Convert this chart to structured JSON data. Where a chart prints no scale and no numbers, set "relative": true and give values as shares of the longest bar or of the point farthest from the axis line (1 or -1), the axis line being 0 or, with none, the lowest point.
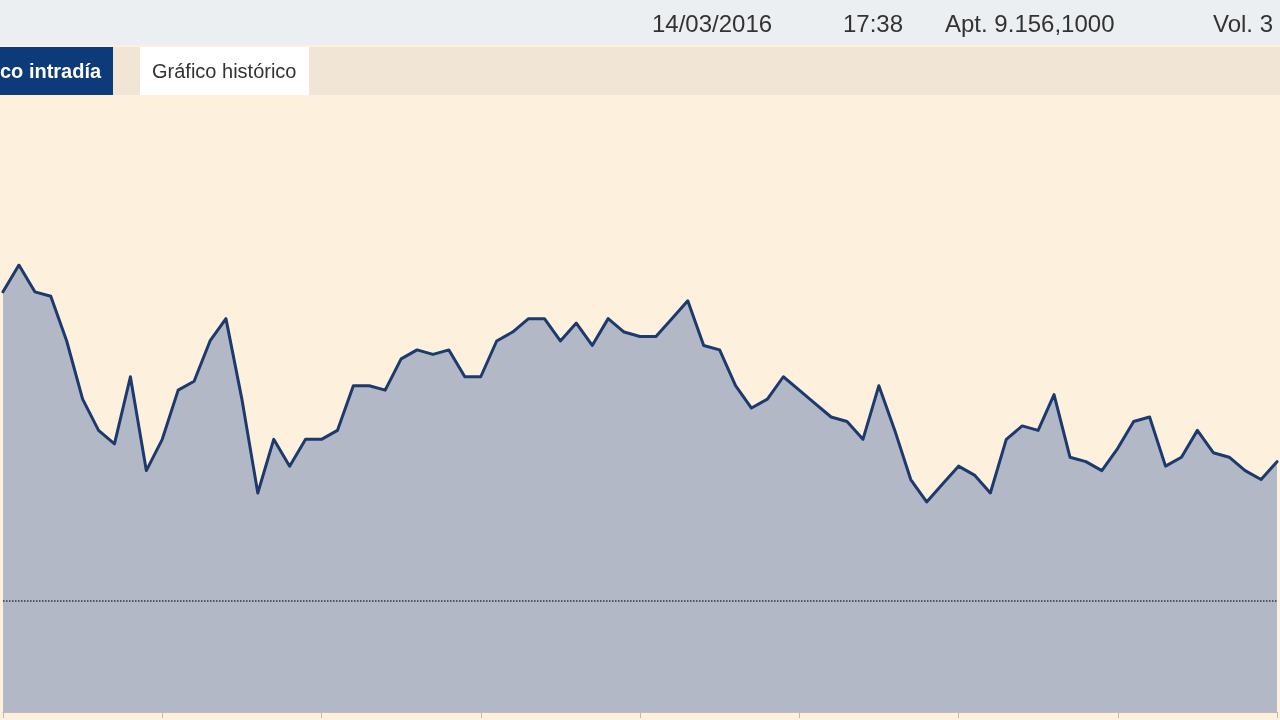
{
  "chart_data": {
    "type": "area",
    "relative": true,
    "categories": [
      null,
      null,
      null,
      null,
      null,
      null,
      null,
      null,
      null,
      null,
      null,
      null,
      null,
      null,
      null,
      null,
      null,
      null,
      null,
      null,
      null,
      null,
      null,
      null,
      null,
      null,
      null,
      null,
      null,
      null,
      null,
      null,
      null,
      null,
      null,
      null,
      null,
      null,
      null,
      null,
      null,
      null,
      null,
      null,
      null,
      null,
      null,
      null,
      null,
      null,
      null,
      null,
      null,
      null,
      null,
      null,
      null,
      null,
      null,
      null,
      null,
      null,
      null,
      null,
      null,
      null,
      null,
      null,
      null,
      null,
      null,
      null,
      null,
      null,
      null,
      null,
      null,
      null,
      null,
      null,
      null
    ],
    "series": [
      {
        "color": "#1c3a6e",
        "values": [
          0.94,
          1.0,
          0.94,
          0.93,
          0.83,
          0.7,
          0.63,
          0.6,
          0.75,
          0.54,
          0.61,
          0.72,
          0.74,
          0.83,
          0.88,
          0.7,
          0.49,
          0.61,
          0.55,
          0.61,
          0.61,
          0.63,
          0.73,
          0.73,
          0.72,
          0.79,
          0.81,
          0.8,
          0.81,
          0.75,
          0.75,
          0.83,
          0.85,
          0.88,
          0.88,
          0.83,
          0.87,
          0.82,
          0.88,
          0.85,
          0.84,
          0.84,
          0.88,
          0.92,
          0.82,
          0.81,
          0.73,
          0.68,
          0.7,
          0.75,
          0.72,
          0.69,
          0.66,
          0.65,
          0.61,
          0.73,
          0.63,
          0.52,
          0.47,
          0.51,
          0.55,
          0.53,
          0.49,
          0.61,
          0.64,
          0.63,
          0.71,
          0.57,
          0.56,
          0.54,
          0.59,
          0.65,
          0.66,
          0.55,
          0.57,
          0.63,
          0.58,
          0.57,
          0.54,
          0.52,
          0.56
        ]
      }
    ],
    "ref_lines": [
      {
        "axis": "y",
        "value": 0.25,
        "color": "#333333",
        "line_style": "dotted"
      }
    ],
    "annotations": [
      "14/03/2016",
      "17:38",
      "Apt. 9.156,1000",
      "Vol. 3",
      "co intradía",
      "Gráfico histórico"
    ]
  }
}
